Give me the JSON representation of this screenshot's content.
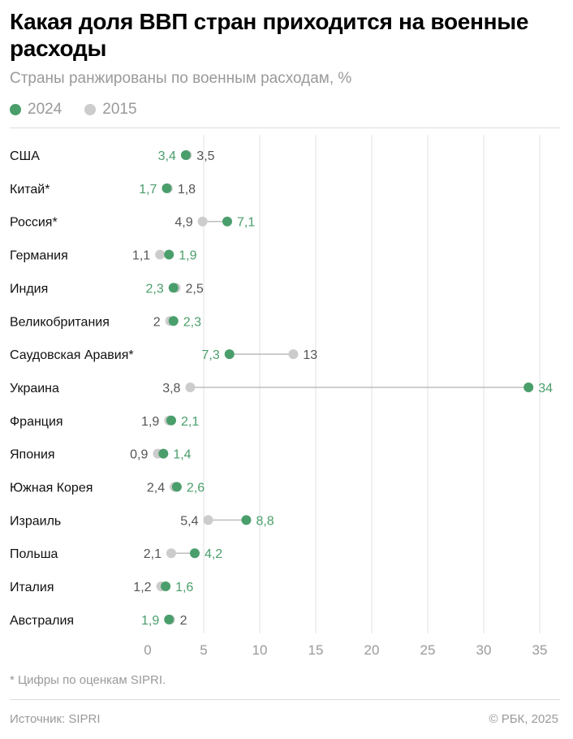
{
  "header": {
    "title": "Какая доля ВВП стран приходится на военные расходы",
    "subtitle": "Страны ранжированы по военным расходам, %"
  },
  "legend": [
    {
      "label": "2024",
      "color": "#4a9e6b"
    },
    {
      "label": "2015",
      "color": "#cccccc"
    }
  ],
  "chart_data": {
    "type": "dumbbell",
    "title": "Какая доля ВВП стран приходится на военные расходы",
    "subtitle": "Страны ранжированы по военным расходам, %",
    "xlim": [
      0,
      35
    ],
    "xticks": [
      0,
      5,
      10,
      15,
      20,
      25,
      30,
      35
    ],
    "grid": true,
    "legend_position": "top-left",
    "colors": {
      "2024": "#4a9e6b",
      "2015": "#cccccc",
      "label_2015": "#555555"
    },
    "series": [
      {
        "name": "2024",
        "key": "v2024"
      },
      {
        "name": "2015",
        "key": "v2015"
      }
    ],
    "categories": [
      "США",
      "Китай*",
      "Россия*",
      "Германия",
      "Индия",
      "Великобритания",
      "Саудовская Аравия*",
      "Украина",
      "Франция",
      "Япония",
      "Южная Корея",
      "Израиль",
      "Польша",
      "Италия",
      "Австралия"
    ],
    "v2024": [
      3.4,
      1.7,
      7.1,
      1.9,
      2.3,
      2.3,
      7.3,
      34,
      2.1,
      1.4,
      2.6,
      8.8,
      4.2,
      1.6,
      1.9
    ],
    "v2015": [
      3.5,
      1.8,
      4.9,
      1.1,
      2.5,
      2,
      13,
      3.8,
      1.9,
      0.9,
      2.4,
      5.4,
      2.1,
      1.2,
      2
    ],
    "labels_2024": [
      "3,4",
      "1,7",
      "7,1",
      "1,9",
      "2,3",
      "2,3",
      "7,3",
      "34",
      "2,1",
      "1,4",
      "2,6",
      "8,8",
      "4,2",
      "1,6",
      "1,9"
    ],
    "labels_2015": [
      "3,5",
      "1,8",
      "4,9",
      "1,1",
      "2,5",
      "2",
      "13",
      "3,8",
      "1,9",
      "0,9",
      "2,4",
      "5,4",
      "2,1",
      "1,2",
      "2"
    ]
  },
  "footer": {
    "footnote": "* Цифры по оценкам SIPRI.",
    "source": "Источник: SIPRI",
    "copyright": "© РБК, 2025"
  }
}
